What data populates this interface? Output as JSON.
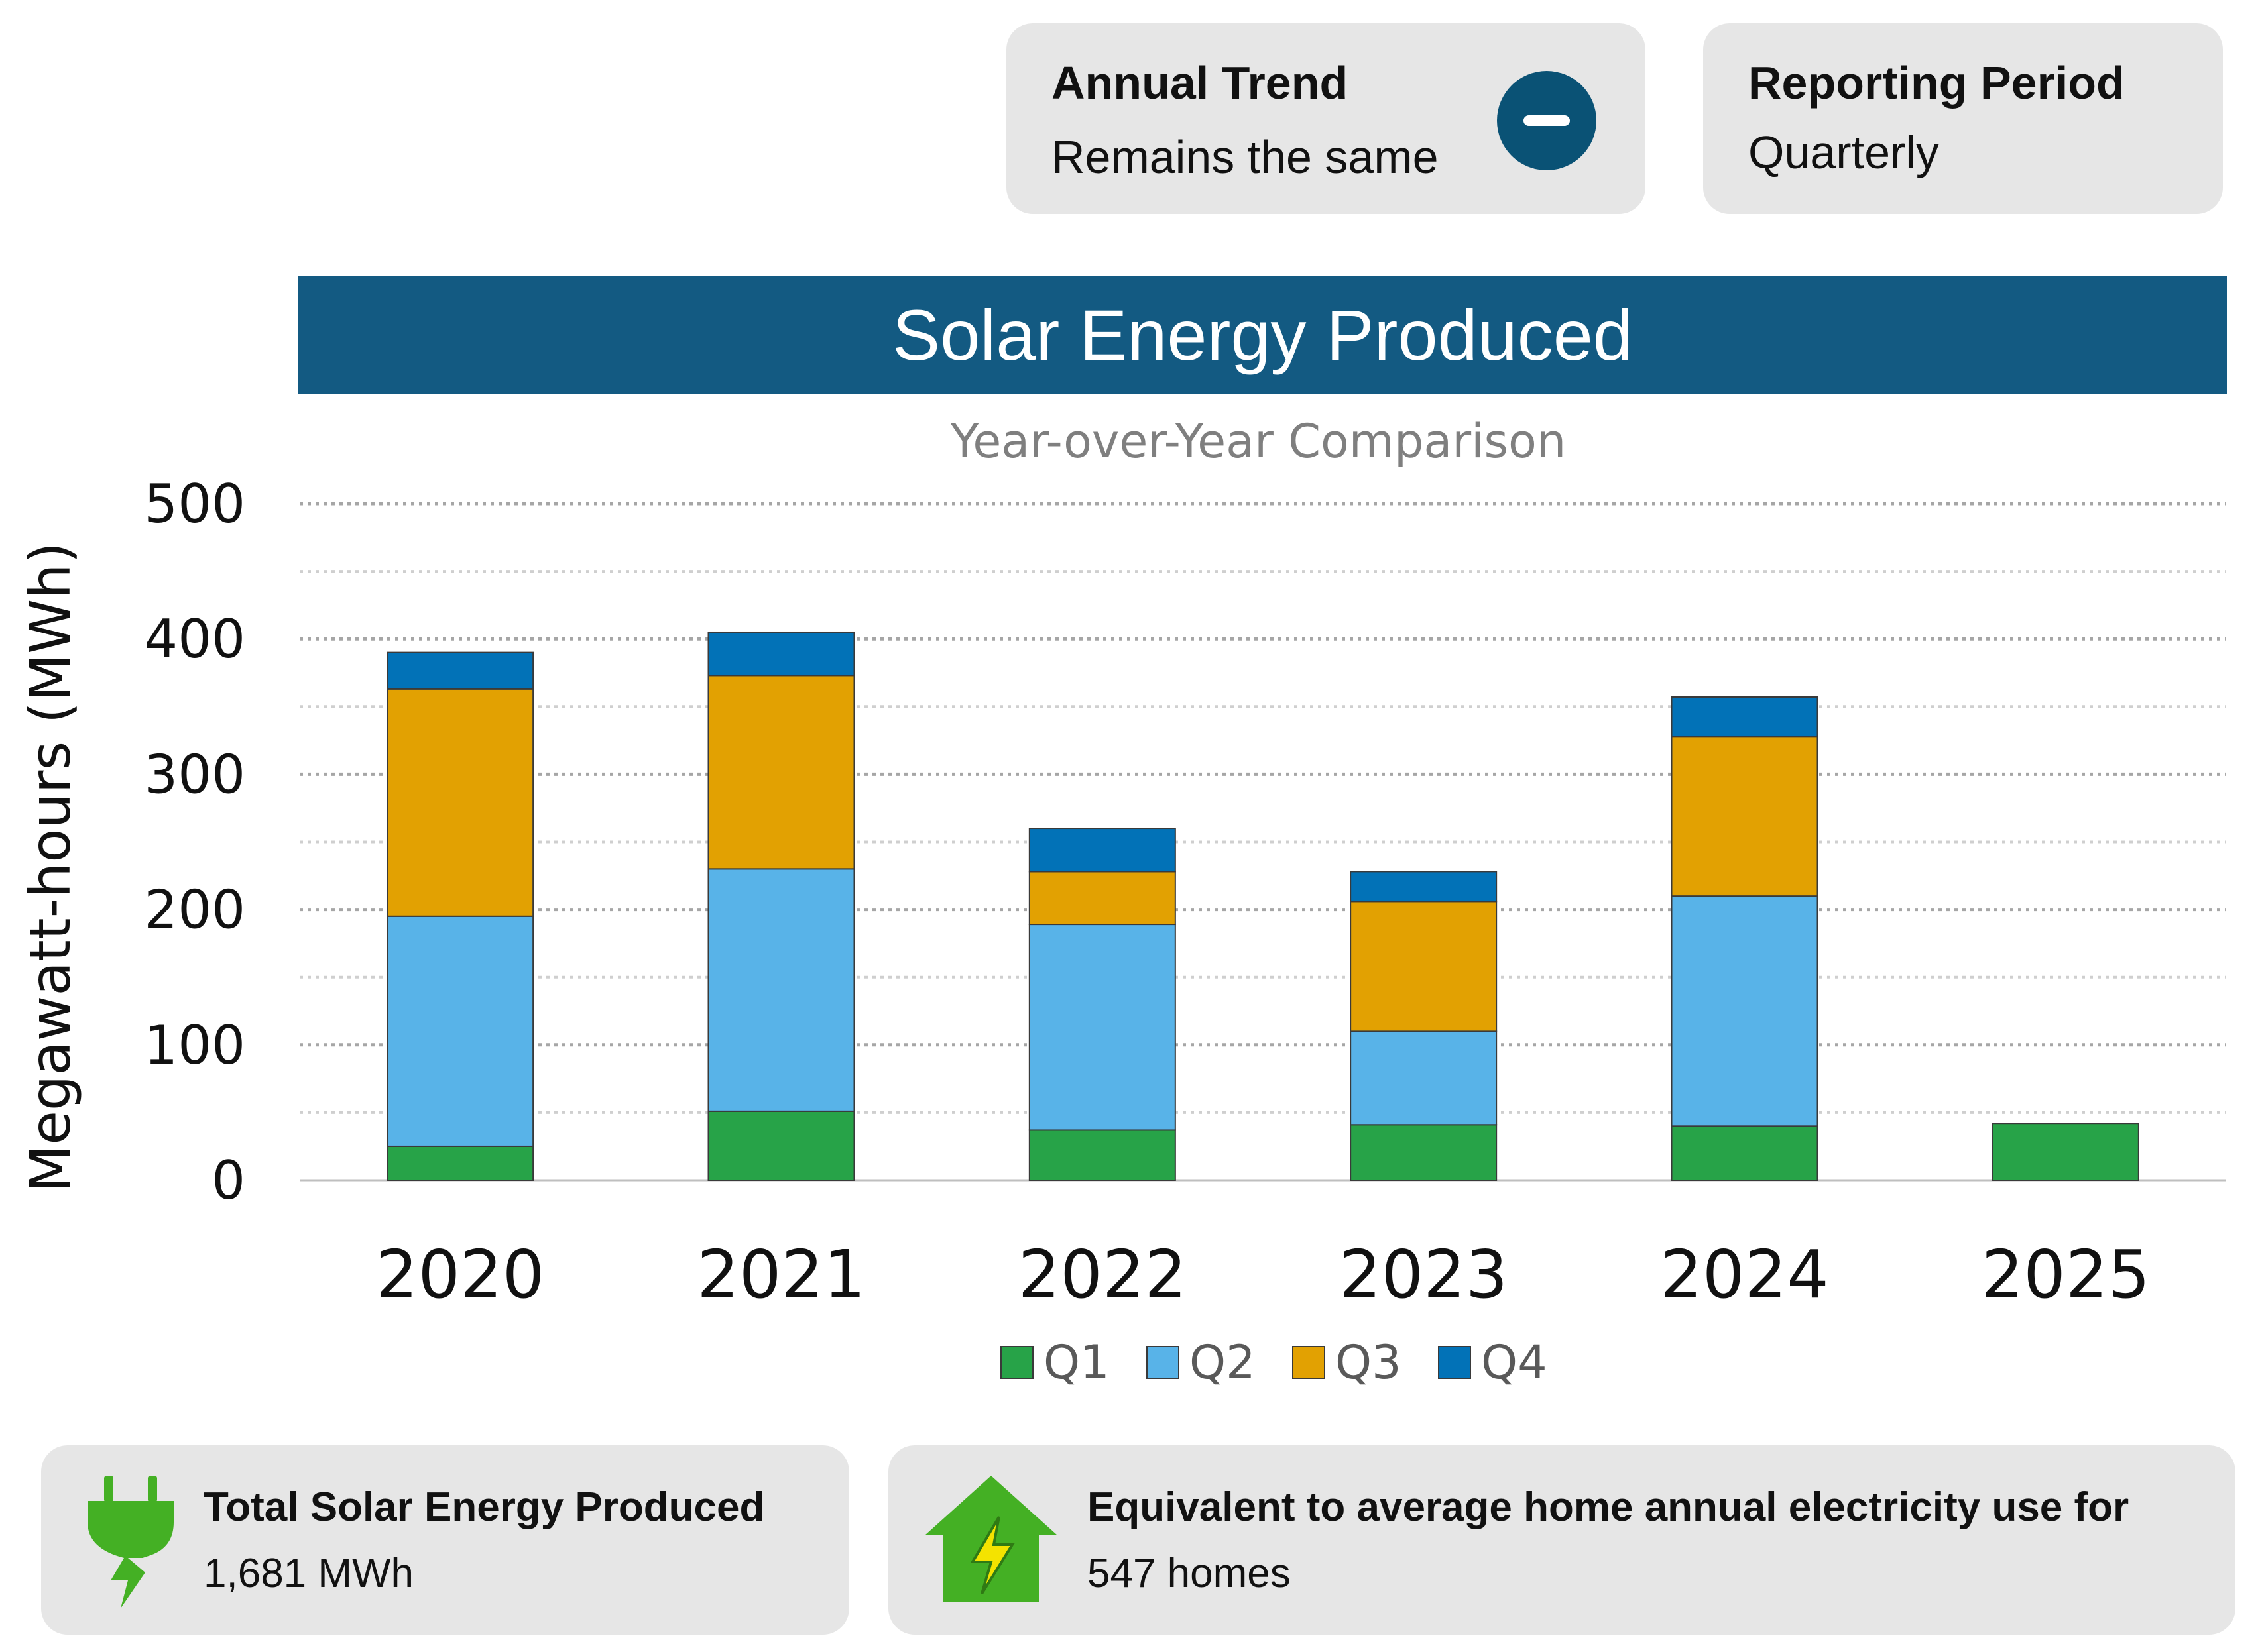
{
  "annual_trend": {
    "title": "Annual Trend",
    "value": "Remains the same",
    "icon": "minus-circle-icon",
    "icon_color": "#0a5275"
  },
  "reporting_period": {
    "title": "Reporting Period",
    "value": "Quarterly"
  },
  "summary": {
    "energy": {
      "title": "Total Solar Energy Produced",
      "value": "1,681 MWh",
      "icon": "plug-bolt-icon",
      "icon_color": "#44b024"
    },
    "homes": {
      "title": "Equivalent to average home annual electricity use for",
      "value": "547 homes",
      "icon": "house-bolt-icon",
      "icon_color": "#44b024"
    }
  },
  "colors": {
    "title_bar": "#135a82",
    "card_bg": "#e6e6e6"
  },
  "chart_data": {
    "type": "bar",
    "stacked": true,
    "title": "Solar Energy Produced",
    "subtitle": "Year-over-Year Comparison",
    "xlabel": "",
    "ylabel": "Megawatt-hours (MWh)",
    "ylim": [
      0,
      500
    ],
    "yticks": [
      0,
      100,
      200,
      300,
      400,
      500
    ],
    "grid": true,
    "legend": "bottom-center",
    "categories": [
      "2020",
      "2021",
      "2022",
      "2023",
      "2024",
      "2025"
    ],
    "series": [
      {
        "name": "Q1",
        "color": "#27a348",
        "values": [
          25,
          51,
          37,
          41,
          40,
          42
        ]
      },
      {
        "name": "Q2",
        "color": "#58b3e8",
        "values": [
          170,
          179,
          152,
          69,
          170,
          0
        ]
      },
      {
        "name": "Q3",
        "color": "#e2a102",
        "values": [
          168,
          143,
          39,
          96,
          118,
          0
        ]
      },
      {
        "name": "Q4",
        "color": "#0272b7",
        "values": [
          27,
          32,
          32,
          22,
          29,
          0
        ]
      }
    ]
  }
}
